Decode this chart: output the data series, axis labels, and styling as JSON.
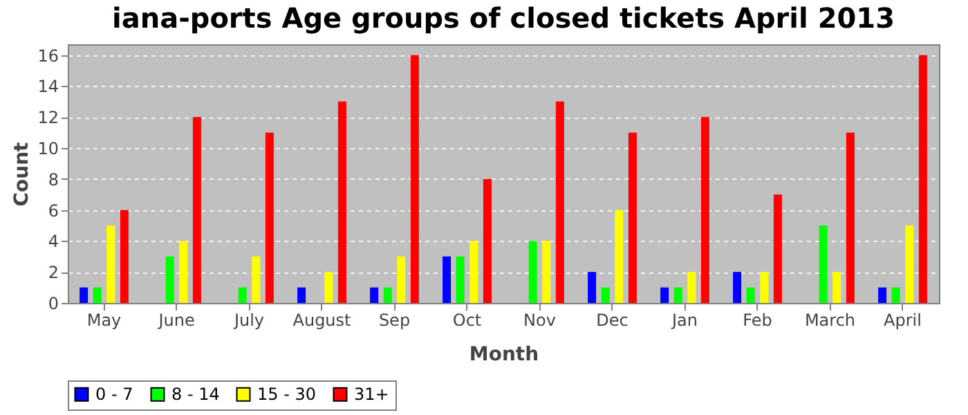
{
  "chart_data": {
    "type": "bar",
    "title": "iana-ports Age groups of closed tickets April 2013",
    "xlabel": "Month",
    "ylabel": "Count",
    "categories": [
      "May",
      "June",
      "July",
      "August",
      "Sep",
      "Oct",
      "Nov",
      "Dec",
      "Jan",
      "Feb",
      "March",
      "April"
    ],
    "series": [
      {
        "name": "0 - 7",
        "color": "#0000ff",
        "values": [
          1,
          0,
          0,
          1,
          1,
          3,
          0,
          2,
          1,
          2,
          0,
          1
        ]
      },
      {
        "name": "8 - 14",
        "color": "#00ff00",
        "values": [
          1,
          3,
          1,
          0,
          1,
          3,
          4,
          1,
          1,
          1,
          5,
          1
        ]
      },
      {
        "name": "15 - 30",
        "color": "#ffff00",
        "values": [
          5,
          4,
          3,
          2,
          3,
          4,
          4,
          6,
          2,
          2,
          2,
          5
        ]
      },
      {
        "name": "31+",
        "color": "#ff0000",
        "values": [
          6,
          12,
          11,
          13,
          16,
          8,
          13,
          11,
          12,
          7,
          11,
          16
        ]
      }
    ],
    "ylim": [
      0,
      16.7
    ],
    "yticks": [
      0,
      2,
      4,
      6,
      8,
      10,
      12,
      14,
      16
    ],
    "grid": "y",
    "legend": "bottom"
  }
}
